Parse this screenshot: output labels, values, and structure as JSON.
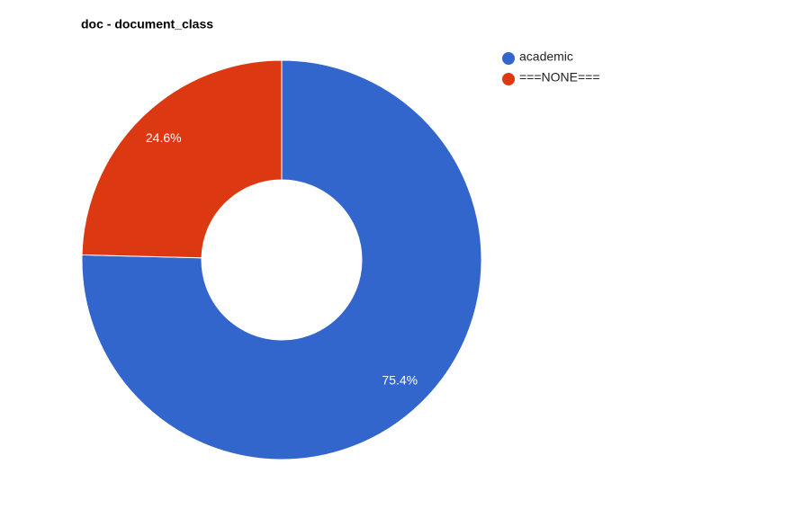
{
  "chart_data": {
    "type": "donut",
    "title": "doc - document_class",
    "categories": [
      "academic",
      "===NONE==="
    ],
    "values": [
      75.4,
      24.6
    ],
    "value_labels": [
      "75.4%",
      "24.6%"
    ],
    "colors": [
      "#3366cc",
      "#dc3912"
    ],
    "legend": "right"
  }
}
